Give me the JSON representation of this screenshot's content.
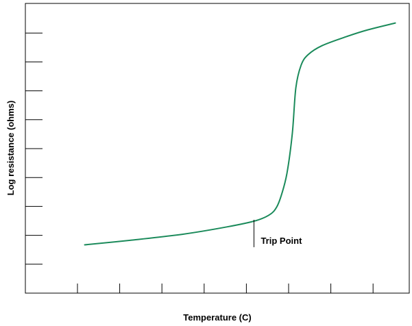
{
  "chart_data": {
    "type": "line",
    "title": "",
    "xlabel": "Temperature (C)",
    "ylabel": "Log resistance (ohms)",
    "x_tick_count": 8,
    "y_tick_count": 9,
    "tick_labels_shown": false,
    "grid": false,
    "series": [
      {
        "color": "#1a8a5a",
        "points": [
          [
            0.17,
            1.6
          ],
          [
            0.3,
            1.75
          ],
          [
            0.45,
            1.95
          ],
          [
            0.58,
            2.2
          ],
          [
            0.66,
            2.4
          ],
          [
            0.7,
            2.6
          ],
          [
            0.72,
            2.85
          ],
          [
            0.735,
            3.3
          ],
          [
            0.75,
            4.0
          ],
          [
            0.765,
            5.3
          ],
          [
            0.775,
            6.8
          ],
          [
            0.79,
            7.55
          ],
          [
            0.81,
            7.9
          ],
          [
            0.85,
            8.2
          ],
          [
            0.92,
            8.5
          ],
          [
            0.98,
            8.72
          ],
          [
            1.06,
            8.95
          ]
        ]
      }
    ],
    "annotations": [
      {
        "label": "Trip Point",
        "x": 0.655,
        "y": 2.43
      }
    ],
    "xlim": [
      0,
      1.1
    ],
    "ylim": [
      0,
      9.6
    ]
  }
}
